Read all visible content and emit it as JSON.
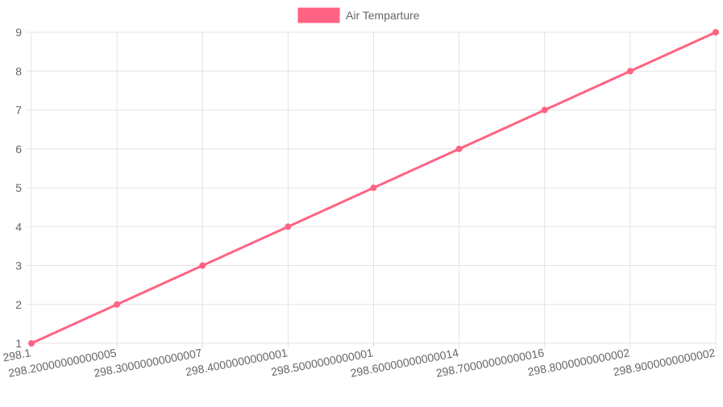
{
  "chart_data": {
    "type": "line",
    "categories": [
      "298.1",
      "298.20000000000005",
      "298.30000000000007",
      "298.4000000000001",
      "298.5000000000001",
      "298.60000000000014",
      "298.70000000000016",
      "298.8000000000002",
      "298.9000000000002"
    ],
    "series": [
      {
        "name": "Air Temparture",
        "values": [
          1,
          2,
          3,
          4,
          5,
          6,
          7,
          8,
          9
        ],
        "color": "#ff6384"
      }
    ],
    "ylim": [
      1,
      9
    ],
    "yticks": [
      "1",
      "2",
      "3",
      "4",
      "5",
      "6",
      "7",
      "8",
      "9"
    ],
    "grid": true,
    "legend_position": "top",
    "title": "",
    "xlabel": "",
    "ylabel": ""
  }
}
